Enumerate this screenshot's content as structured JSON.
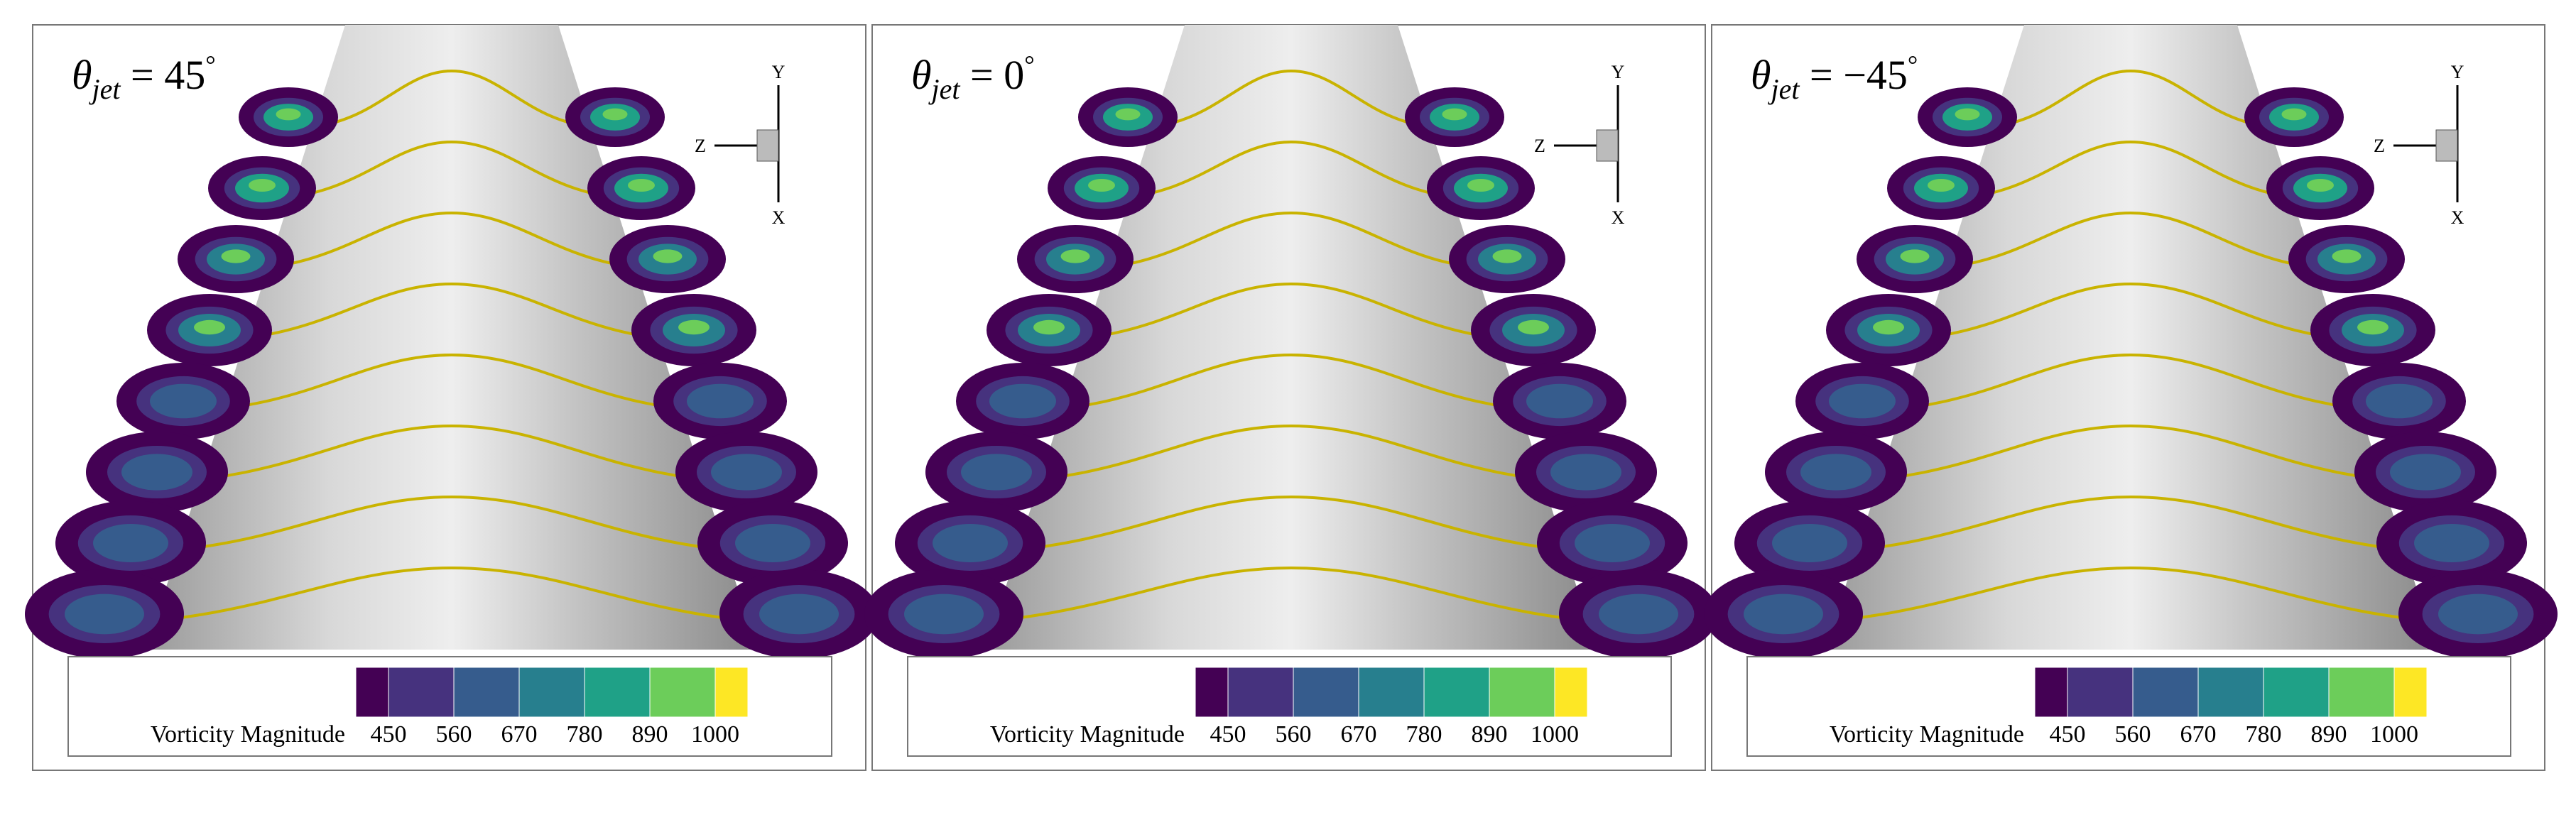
{
  "panels": [
    {
      "title": {
        "symbol": "θ",
        "subscript": "jet",
        "relation": " = 45",
        "superscript": "°"
      },
      "triad": {
        "y": "Y",
        "z": "Z",
        "x": "X"
      },
      "colorbar": {
        "label": "Vorticity Magnitude",
        "ticks": [
          450,
          560,
          670,
          780,
          890,
          1000
        ]
      }
    },
    {
      "title": {
        "symbol": "θ",
        "subscript": "jet",
        "relation": " = 0",
        "superscript": "°"
      },
      "triad": {
        "y": "Y",
        "z": "Z",
        "x": "X"
      },
      "colorbar": {
        "label": "Vorticity Magnitude",
        "ticks": [
          450,
          560,
          670,
          780,
          890,
          1000
        ]
      }
    },
    {
      "title": {
        "symbol": "θ",
        "subscript": "jet",
        "relation": " = −45",
        "superscript": "°"
      },
      "triad": {
        "y": "Y",
        "z": "Z",
        "x": "X"
      },
      "colorbar": {
        "label": "Vorticity Magnitude",
        "ticks": [
          450,
          560,
          670,
          780,
          890,
          1000
        ]
      }
    }
  ],
  "colormap": [
    "#440154",
    "#46327e",
    "#365c8d",
    "#277f8e",
    "#1fa187",
    "#6ccd5a",
    "#fde725"
  ]
}
